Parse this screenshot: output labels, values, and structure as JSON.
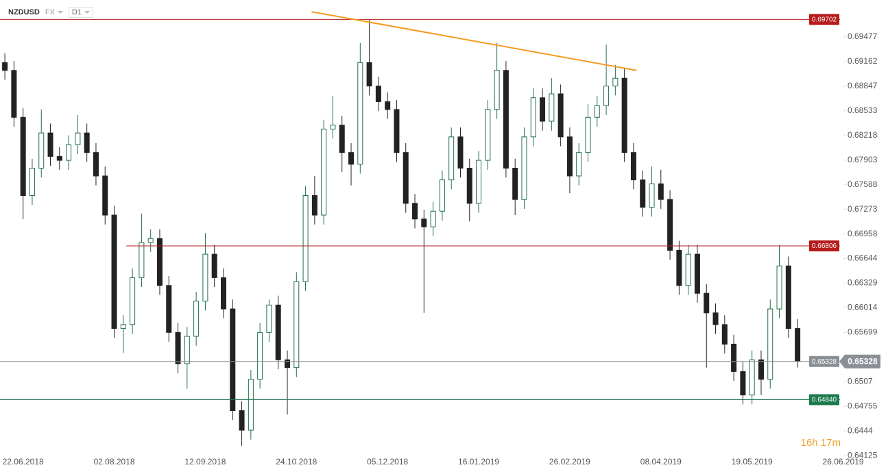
{
  "header": {
    "symbol": "NZDUSD",
    "market": "FX",
    "interval": "D1"
  },
  "countdown": "16h 17m",
  "chart_data": {
    "type": "candlestick",
    "x": [
      0,
      3,
      6,
      9,
      12,
      15,
      18,
      21,
      24,
      27,
      30,
      33,
      36,
      39,
      42,
      45,
      48,
      51,
      54,
      57,
      60,
      63,
      66,
      69,
      72,
      75,
      78,
      81,
      84,
      87,
      90,
      93,
      96,
      99,
      102,
      105,
      108,
      111,
      114,
      117,
      120,
      123,
      126,
      129,
      132,
      135,
      138,
      141,
      144,
      147,
      150,
      153,
      156,
      159,
      162,
      165,
      168,
      171,
      174,
      177,
      180,
      183,
      186,
      189,
      192,
      195,
      198,
      201,
      204,
      207,
      210,
      213,
      216,
      219,
      222,
      225,
      228,
      231,
      234,
      237,
      240,
      243,
      246,
      249,
      252,
      255,
      258,
      261
    ],
    "open": [
      0.6915,
      0.6905,
      0.6845,
      0.6745,
      0.678,
      0.6825,
      0.6795,
      0.679,
      0.681,
      0.6825,
      0.68,
      0.677,
      0.672,
      0.6575,
      0.658,
      0.664,
      0.6685,
      0.669,
      0.663,
      0.657,
      0.653,
      0.6565,
      0.661,
      0.667,
      0.664,
      0.66,
      0.647,
      0.6445,
      0.651,
      0.657,
      0.6605,
      0.6535,
      0.6525,
      0.6635,
      0.6745,
      0.672,
      0.683,
      0.6835,
      0.68,
      0.6785,
      0.6915,
      0.6885,
      0.6865,
      0.6855,
      0.68,
      0.6735,
      0.6715,
      0.6705,
      0.6725,
      0.6765,
      0.682,
      0.678,
      0.6735,
      0.679,
      0.6855,
      0.6905,
      0.678,
      0.674,
      0.682,
      0.687,
      0.684,
      0.6875,
      0.682,
      0.677,
      0.68,
      0.6845,
      0.686,
      0.6885,
      0.6895,
      0.68,
      0.6765,
      0.673,
      0.676,
      0.674,
      0.6675,
      0.663,
      0.667,
      0.662,
      0.6595,
      0.658,
      0.6555,
      0.652,
      0.649,
      0.6535,
      0.651,
      0.66,
      0.6655,
      0.6575
    ],
    "high": [
      0.6927,
      0.6917,
      0.6857,
      0.6792,
      0.6855,
      0.6837,
      0.6807,
      0.6822,
      0.6848,
      0.6837,
      0.6812,
      0.6782,
      0.6732,
      0.6592,
      0.6652,
      0.6722,
      0.6702,
      0.6702,
      0.6642,
      0.6582,
      0.6577,
      0.6622,
      0.6697,
      0.6682,
      0.6652,
      0.6612,
      0.6482,
      0.6522,
      0.6582,
      0.6612,
      0.6617,
      0.6547,
      0.6647,
      0.6757,
      0.677,
      0.6842,
      0.6872,
      0.6847,
      0.6812,
      0.694,
      0.697,
      0.6897,
      0.6877,
      0.6867,
      0.6812,
      0.6747,
      0.6727,
      0.6737,
      0.6777,
      0.6832,
      0.6832,
      0.6792,
      0.6802,
      0.6867,
      0.694,
      0.6917,
      0.6792,
      0.6832,
      0.6882,
      0.6882,
      0.6895,
      0.6887,
      0.6832,
      0.6812,
      0.6862,
      0.6872,
      0.6938,
      0.6912,
      0.6907,
      0.6812,
      0.6777,
      0.6782,
      0.6778,
      0.6752,
      0.6687,
      0.6682,
      0.6682,
      0.6632,
      0.6607,
      0.6592,
      0.6567,
      0.6532,
      0.6547,
      0.6547,
      0.6612,
      0.6682,
      0.6667,
      0.6587
    ],
    "low": [
      0.6893,
      0.6833,
      0.6715,
      0.6733,
      0.6768,
      0.6783,
      0.6778,
      0.6778,
      0.6798,
      0.6788,
      0.6758,
      0.6708,
      0.6563,
      0.6544,
      0.6568,
      0.6628,
      0.6673,
      0.6618,
      0.6558,
      0.6518,
      0.6498,
      0.6553,
      0.6598,
      0.6628,
      0.6588,
      0.6458,
      0.6425,
      0.6433,
      0.6498,
      0.6558,
      0.6523,
      0.6465,
      0.6513,
      0.6623,
      0.6708,
      0.6708,
      0.6818,
      0.6775,
      0.6758,
      0.6773,
      0.6873,
      0.6853,
      0.6843,
      0.6788,
      0.6723,
      0.6703,
      0.6595,
      0.6693,
      0.6713,
      0.6753,
      0.6768,
      0.6712,
      0.6723,
      0.6778,
      0.6843,
      0.6768,
      0.672,
      0.6728,
      0.6808,
      0.6828,
      0.6828,
      0.6808,
      0.6748,
      0.6758,
      0.6788,
      0.6833,
      0.6848,
      0.6873,
      0.6788,
      0.6753,
      0.6718,
      0.6718,
      0.6728,
      0.6663,
      0.6618,
      0.6618,
      0.6608,
      0.6525,
      0.6568,
      0.6543,
      0.6508,
      0.6478,
      0.6478,
      0.649,
      0.6498,
      0.6588,
      0.6563,
      0.6525
    ],
    "close": [
      0.6905,
      0.6845,
      0.6745,
      0.678,
      0.6825,
      0.6795,
      0.679,
      0.681,
      0.6825,
      0.68,
      0.677,
      0.672,
      0.6575,
      0.658,
      0.664,
      0.6685,
      0.669,
      0.663,
      0.657,
      0.653,
      0.6565,
      0.661,
      0.667,
      0.664,
      0.66,
      0.647,
      0.6445,
      0.651,
      0.657,
      0.6605,
      0.6535,
      0.6525,
      0.6635,
      0.6745,
      0.672,
      0.683,
      0.6835,
      0.68,
      0.6785,
      0.6915,
      0.6885,
      0.6865,
      0.6855,
      0.68,
      0.6735,
      0.6715,
      0.6705,
      0.6725,
      0.6765,
      0.682,
      0.678,
      0.6735,
      0.679,
      0.6855,
      0.6905,
      0.678,
      0.674,
      0.682,
      0.687,
      0.684,
      0.6875,
      0.682,
      0.677,
      0.68,
      0.6845,
      0.686,
      0.6885,
      0.6895,
      0.68,
      0.6765,
      0.673,
      0.676,
      0.674,
      0.6675,
      0.663,
      0.667,
      0.662,
      0.6595,
      0.658,
      0.6555,
      0.652,
      0.649,
      0.6535,
      0.651,
      0.66,
      0.6655,
      0.6575,
      0.6533
    ],
    "up_color": "#1f6e4a",
    "down_color": "#222222",
    "xlim": [
      -1.6,
      276.1
    ],
    "xticks": [
      {
        "value": 6,
        "label": "22.06.2018"
      },
      {
        "value": 36,
        "label": "02.08.2018"
      },
      {
        "value": 66,
        "label": "12.09.2018"
      },
      {
        "value": 96,
        "label": "24.10.2018"
      },
      {
        "value": 126,
        "label": "05.12.2018"
      },
      {
        "value": 156,
        "label": "16.01.2019"
      },
      {
        "value": 186,
        "label": "26.02.2019"
      },
      {
        "value": 216,
        "label": "08.04.2019"
      },
      {
        "value": 246,
        "label": "19.05.2019"
      },
      {
        "value": 276,
        "label": "26.06.2019"
      }
    ],
    "ylim": [
      0.641,
      0.6995
    ],
    "yticks": [
      0.69477,
      0.69162,
      0.68847,
      0.68533,
      0.68218,
      0.67903,
      0.67588,
      0.67273,
      0.66958,
      0.66644,
      0.66329,
      0.66014,
      0.65699,
      0.6507,
      0.64755,
      0.6444,
      0.64125
    ],
    "levels": [
      {
        "value": 0.69702,
        "label": "0.69702",
        "color": "#b71c1c"
      },
      {
        "value": 0.66806,
        "label": "0.66806",
        "color": "#b71c1c",
        "start": 40
      },
      {
        "value": 0.6484,
        "label": "0.64840",
        "color": "#1b7a4e"
      },
      {
        "value": 0.65328,
        "label": "0.65328",
        "color": "#8a9096"
      }
    ],
    "trendline": {
      "x": [
        101,
        208
      ],
      "y": [
        0.698,
        0.6905
      ],
      "color": "#f59a1f"
    }
  }
}
